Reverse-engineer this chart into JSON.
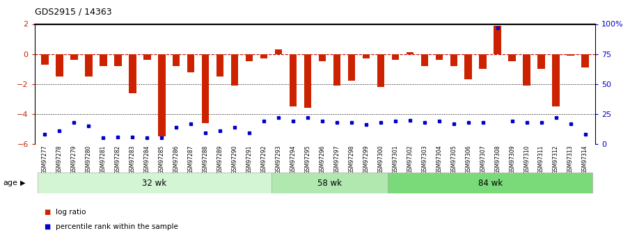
{
  "title": "GDS2915 / 14363",
  "samples": [
    "GSM97277",
    "GSM97278",
    "GSM97279",
    "GSM97280",
    "GSM97281",
    "GSM97282",
    "GSM97283",
    "GSM97284",
    "GSM97285",
    "GSM97286",
    "GSM97287",
    "GSM97288",
    "GSM97289",
    "GSM97290",
    "GSM97291",
    "GSM97292",
    "GSM97293",
    "GSM97294",
    "GSM97295",
    "GSM97296",
    "GSM97297",
    "GSM97298",
    "GSM97299",
    "GSM97300",
    "GSM97301",
    "GSM97302",
    "GSM97303",
    "GSM97304",
    "GSM97305",
    "GSM97306",
    "GSM97307",
    "GSM97308",
    "GSM97309",
    "GSM97310",
    "GSM97311",
    "GSM97312",
    "GSM97313",
    "GSM97314"
  ],
  "log_ratio": [
    -0.7,
    -1.5,
    -0.4,
    -1.5,
    -0.8,
    -0.8,
    -2.6,
    -0.4,
    -5.5,
    -0.8,
    -1.2,
    -4.6,
    -1.5,
    -2.1,
    -0.5,
    -0.3,
    0.3,
    -3.5,
    -3.6,
    -0.5,
    -2.1,
    -1.8,
    -0.3,
    -2.2,
    -0.4,
    0.1,
    -0.8,
    -0.4,
    -0.8,
    -1.7,
    -1.0,
    1.9,
    -0.5,
    -2.1,
    -1.0,
    -3.5,
    -0.1,
    -0.9
  ],
  "percentile": [
    8,
    11,
    18,
    15,
    5,
    6,
    6,
    5,
    5,
    14,
    17,
    9,
    11,
    14,
    9,
    19,
    22,
    19,
    22,
    19,
    18,
    18,
    16,
    18,
    19,
    20,
    18,
    19,
    17,
    18,
    18,
    97,
    19,
    18,
    18,
    22,
    17,
    8
  ],
  "groups": [
    {
      "label": "32 wk",
      "start": 0,
      "end": 16,
      "color": "#d4f5d4"
    },
    {
      "label": "58 wk",
      "start": 16,
      "end": 24,
      "color": "#b0e8b0"
    },
    {
      "label": "84 wk",
      "start": 24,
      "end": 38,
      "color": "#7ada7a"
    }
  ],
  "bar_color": "#cc2200",
  "dot_color": "#0000cc",
  "ylim_left": [
    -6,
    2
  ],
  "ylim_right": [
    0,
    100
  ],
  "yticks_left": [
    -6,
    -4,
    -2,
    0,
    2
  ],
  "yticks_right": [
    0,
    25,
    50,
    75,
    100
  ],
  "ytick_right_labels": [
    "0",
    "25",
    "50",
    "75",
    "100%"
  ],
  "hlines": [
    0,
    -2,
    -4
  ],
  "hline_styles": [
    "dashed",
    "dotted",
    "dotted"
  ],
  "legend_items": [
    {
      "label": "log ratio",
      "color": "#cc2200"
    },
    {
      "label": "percentile rank within the sample",
      "color": "#0000cc"
    }
  ],
  "age_label": "age",
  "background_color": "#ffffff"
}
